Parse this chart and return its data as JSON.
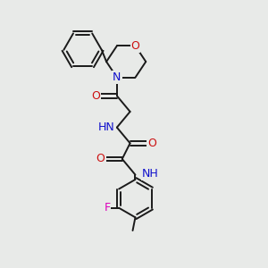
{
  "background_color": "#e8eae8",
  "bond_color": "#1a1a1a",
  "atom_colors": {
    "N": "#1010cc",
    "O": "#cc1010",
    "F": "#dd00bb",
    "C": "#1a1a1a"
  },
  "figsize": [
    3.0,
    3.0
  ],
  "dpi": 100,
  "lw": 1.4
}
